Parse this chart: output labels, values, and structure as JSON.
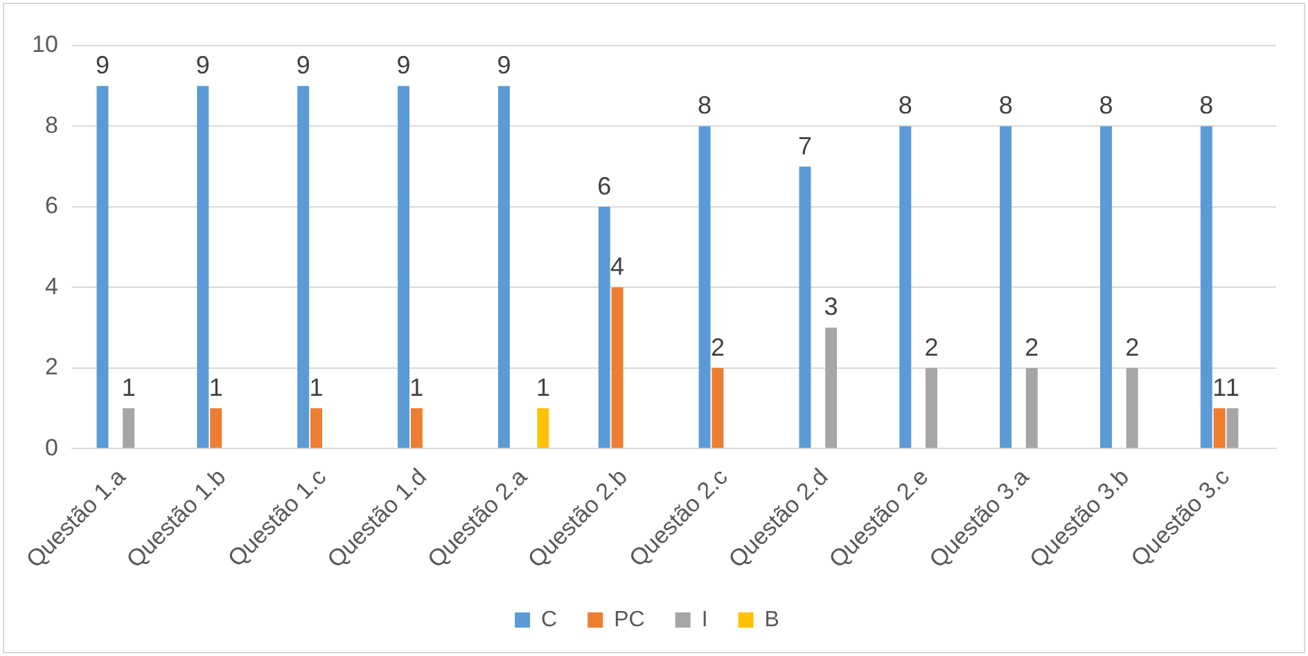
{
  "chart_data": {
    "type": "bar",
    "categories": [
      "Questão 1.a",
      "Questão 1.b",
      "Questão 1.c",
      "Questão 1.d",
      "Questão 2.a",
      "Questão 2.b",
      "Questão 2.c",
      "Questão 2.d",
      "Questão 2.e",
      "Questão 3.a",
      "Questão 3.b",
      "Questão 3.c"
    ],
    "series": [
      {
        "name": "C",
        "color": "#5b9bd5",
        "values": [
          9,
          9,
          9,
          9,
          9,
          6,
          8,
          7,
          8,
          8,
          8,
          8
        ]
      },
      {
        "name": "PC",
        "color": "#ed7d31",
        "values": [
          null,
          1,
          1,
          1,
          null,
          4,
          2,
          null,
          null,
          null,
          null,
          1
        ]
      },
      {
        "name": "I",
        "color": "#a5a5a5",
        "values": [
          1,
          null,
          null,
          null,
          null,
          null,
          null,
          3,
          2,
          2,
          2,
          1
        ]
      },
      {
        "name": "B",
        "color": "#ffc000",
        "values": [
          null,
          null,
          null,
          null,
          1,
          null,
          null,
          null,
          null,
          null,
          null,
          null
        ]
      }
    ],
    "ylim": [
      0,
      10
    ],
    "yticks": [
      0,
      2,
      4,
      6,
      8,
      10
    ],
    "grid": "y",
    "legend": "bottom",
    "data_labels": true
  }
}
